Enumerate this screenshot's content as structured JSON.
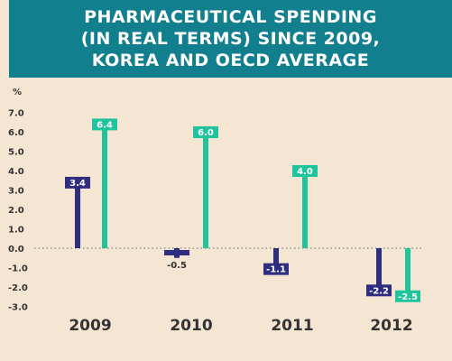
{
  "title_lines": [
    "PHARMACEUTICAL SPENDING",
    "(IN REAL TERMS) SINCE 2009,",
    "KOREA AND OECD AVERAGE"
  ],
  "colors": {
    "background": "#f5e6d3",
    "title_band": "#127f8f",
    "korea": "#2e2d7f",
    "oecd": "#1fc49c",
    "text": "#333333"
  },
  "chart_data": {
    "type": "bar",
    "ylabel": "%",
    "ylim": [
      -3.0,
      7.0
    ],
    "yticks": [
      "7.0",
      "6.0",
      "5.0",
      "4.0",
      "3.0",
      "2.0",
      "1.0",
      "0.0",
      "-1.0",
      "-2.0",
      "-3.0"
    ],
    "categories": [
      "2009",
      "2010",
      "2011",
      "2012"
    ],
    "series": [
      {
        "key": "korea",
        "values": [
          3.4,
          -0.5,
          -1.1,
          -2.2
        ],
        "labels": [
          "3.4",
          "-0.5",
          "-1.1",
          "-2.2"
        ]
      },
      {
        "key": "oecd",
        "values": [
          6.4,
          6.0,
          4.0,
          -2.5
        ],
        "labels": [
          "6.4",
          "6.0",
          "4.0",
          "-2.5"
        ]
      }
    ],
    "grid": false,
    "legend": "none"
  }
}
